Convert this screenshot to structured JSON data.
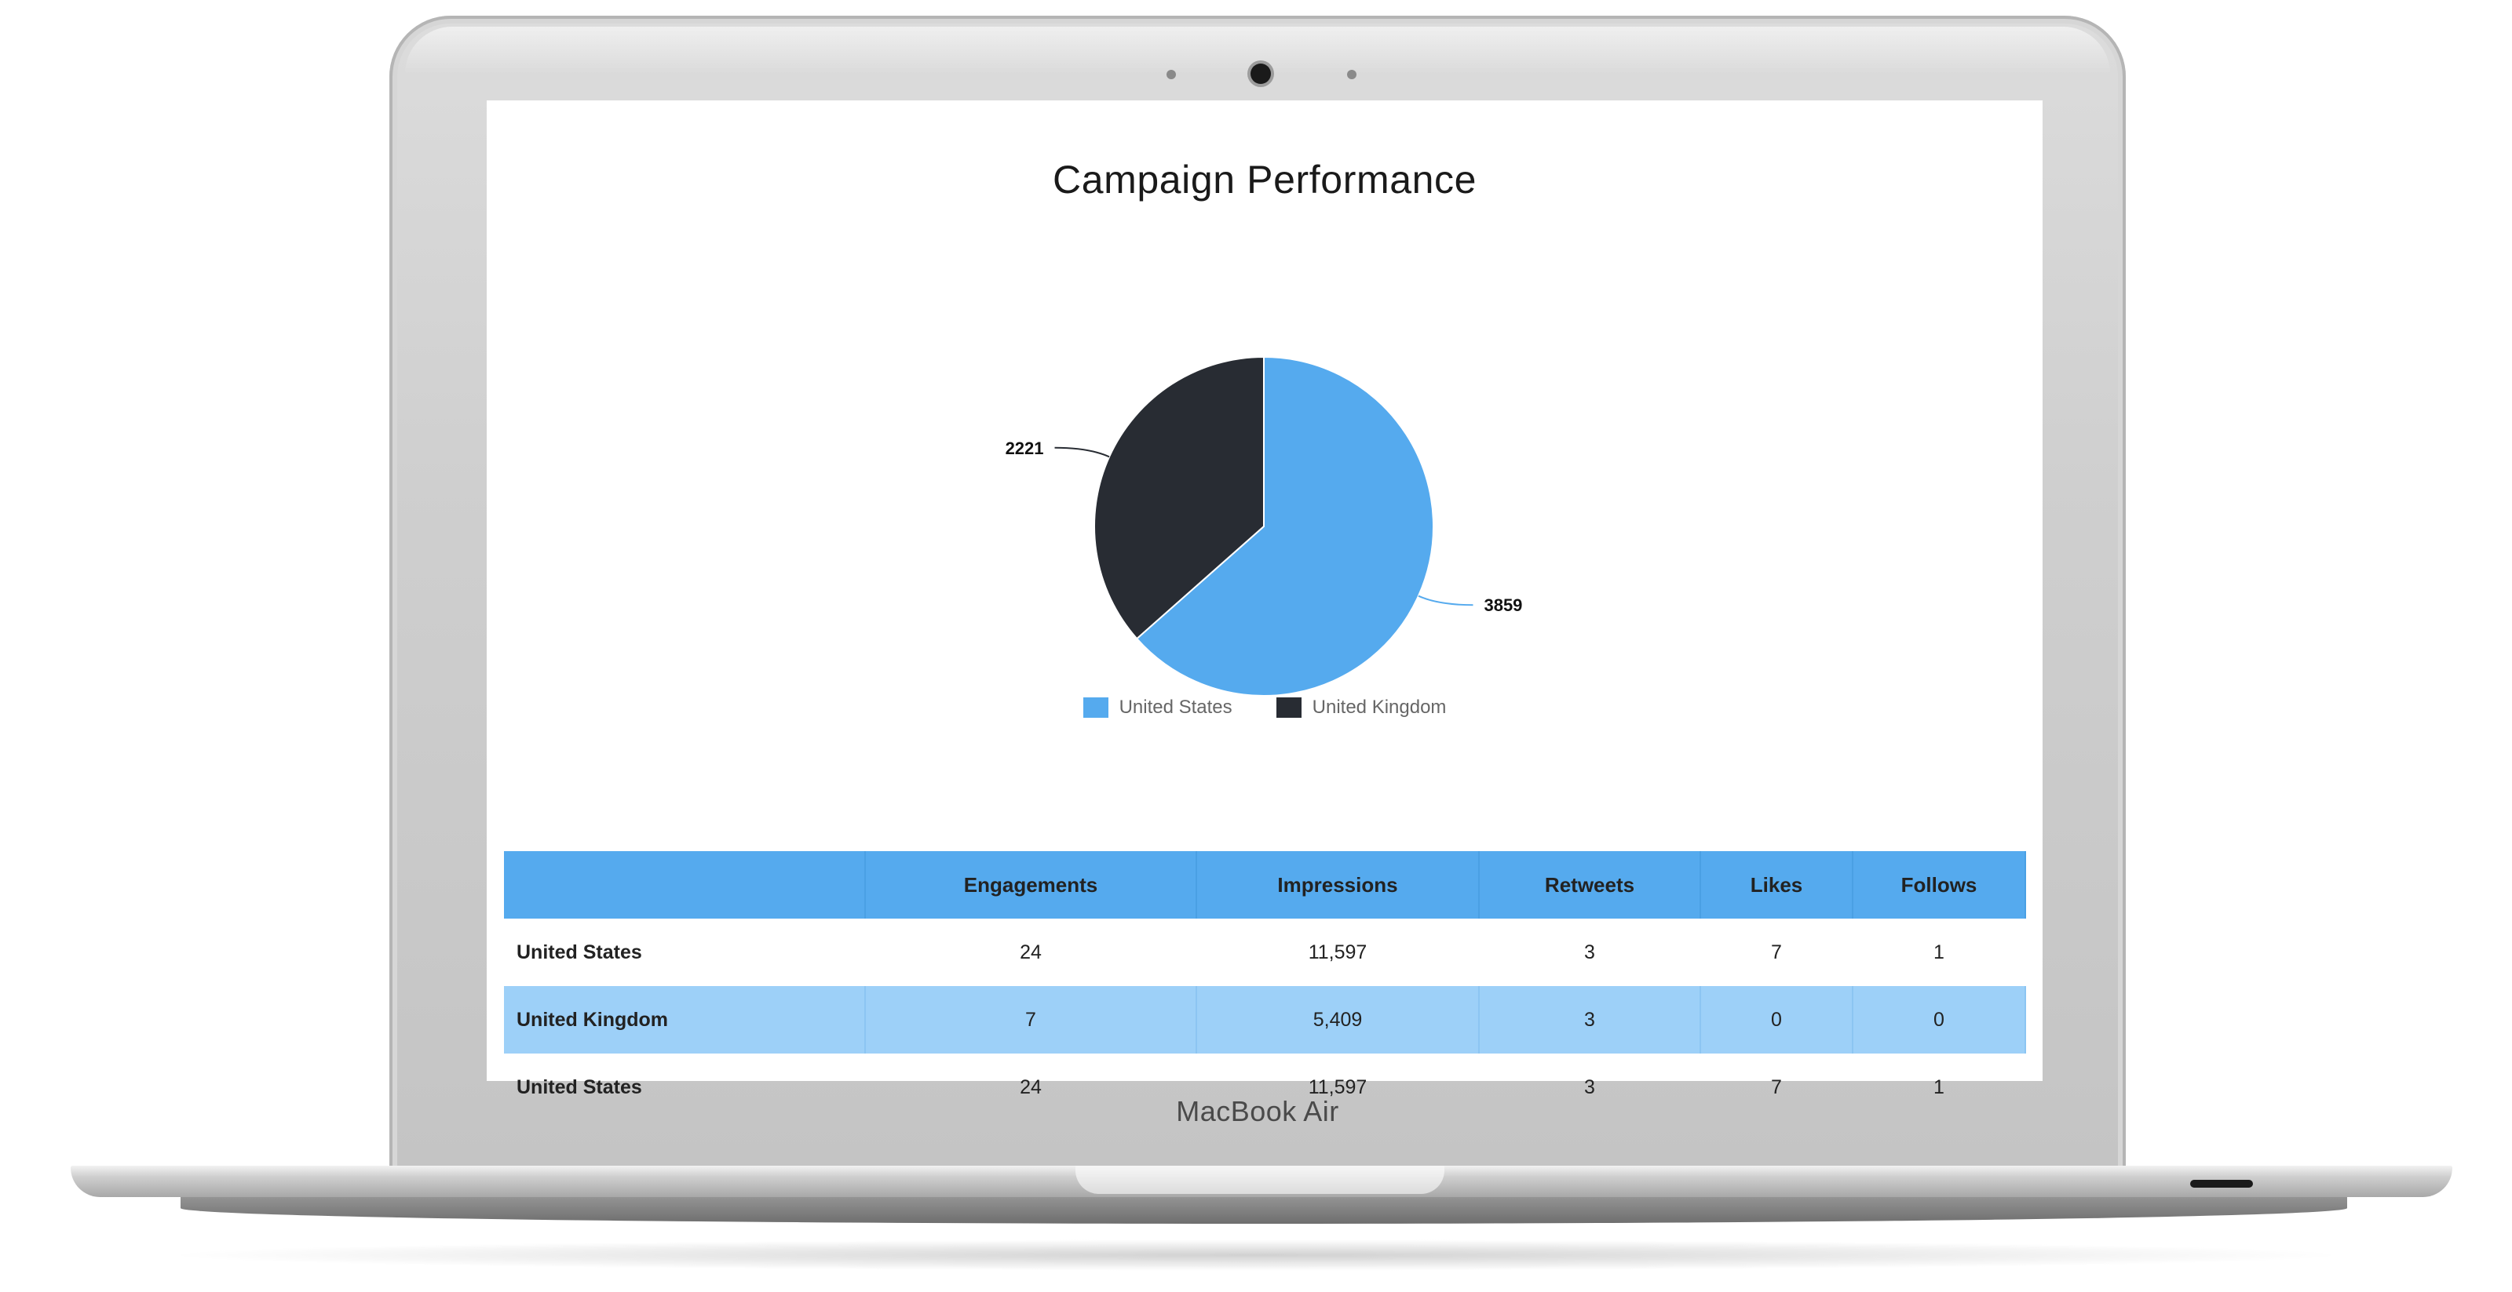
{
  "device": {
    "brand_label": "MacBook Air"
  },
  "chart_data": {
    "type": "pie",
    "title": "Campaign Performance",
    "categories": [
      "United States",
      "United Kingdom"
    ],
    "values": [
      3859,
      2221
    ],
    "colors": [
      "#55aaee",
      "#282c33"
    ],
    "data_labels": [
      "3859",
      "2221"
    ],
    "legend_position": "bottom"
  },
  "table": {
    "headers": [
      "",
      "Engagements",
      "Impressions",
      "Retweets",
      "Likes",
      "Follows"
    ],
    "rows": [
      [
        "United States",
        "24",
        "11,597",
        "3",
        "7",
        "1"
      ],
      [
        "United Kingdom",
        "7",
        "5,409",
        "3",
        "0",
        "0"
      ],
      [
        "United States",
        "24",
        "11,597",
        "3",
        "7",
        "1"
      ]
    ]
  }
}
